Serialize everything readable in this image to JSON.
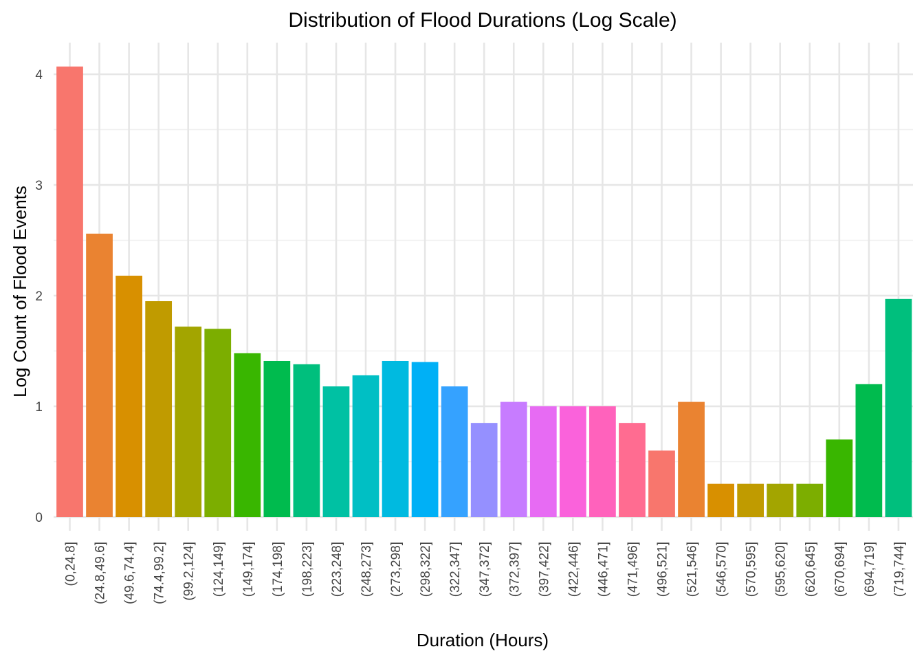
{
  "chart_data": {
    "type": "bar",
    "title": "Distribution of Flood Durations (Log Scale)",
    "xlabel": "Duration (Hours)",
    "ylabel": "Log Count of Flood Events",
    "ylim": [
      0,
      4.2
    ],
    "yticks": [
      "0",
      "1",
      "2",
      "3",
      "4"
    ],
    "grid": true,
    "legend": "none",
    "categories": [
      "(0,24.8]",
      "(24.8,49.6]",
      "(49.6,74.4]",
      "(74.4,99.2]",
      "(99.2,124]",
      "(124,149]",
      "(149,174]",
      "(174,198]",
      "(198,223]",
      "(223,248]",
      "(248,273]",
      "(273,298]",
      "(298,322]",
      "(322,347]",
      "(347,372]",
      "(372,397]",
      "(397,422]",
      "(422,446]",
      "(446,471]",
      "(471,496]",
      "(496,521]",
      "(521,546]",
      "(546,570]",
      "(570,595]",
      "(595,620]",
      "(620,645]",
      "(670,694]",
      "(694,719]",
      "(719,744]"
    ],
    "values": [
      4.07,
      2.56,
      2.18,
      1.95,
      1.72,
      1.7,
      1.48,
      1.41,
      1.38,
      1.18,
      1.28,
      1.41,
      1.4,
      1.18,
      0.85,
      1.04,
      1.0,
      1.0,
      1.0,
      0.85,
      0.6,
      1.04,
      0.3,
      0.3,
      0.3,
      0.3,
      0.7,
      1.2,
      1.97
    ],
    "colors": [
      "#F8766D",
      "#EA8331",
      "#D89000",
      "#C09B00",
      "#A3A500",
      "#7CAE00",
      "#39B600",
      "#00BB4E",
      "#00BF7D",
      "#00C1A3",
      "#00BFC4",
      "#00BAE0",
      "#00B0F6",
      "#35A2FF",
      "#9590FF",
      "#C77CFF",
      "#E76BF3",
      "#FA62DB",
      "#FF62BC",
      "#FF6C91",
      "#F8766D",
      "#EA8331",
      "#D89000",
      "#C09B00",
      "#A3A500",
      "#7CAE00",
      "#39B600",
      "#00BB4E",
      "#00BF7D"
    ]
  }
}
